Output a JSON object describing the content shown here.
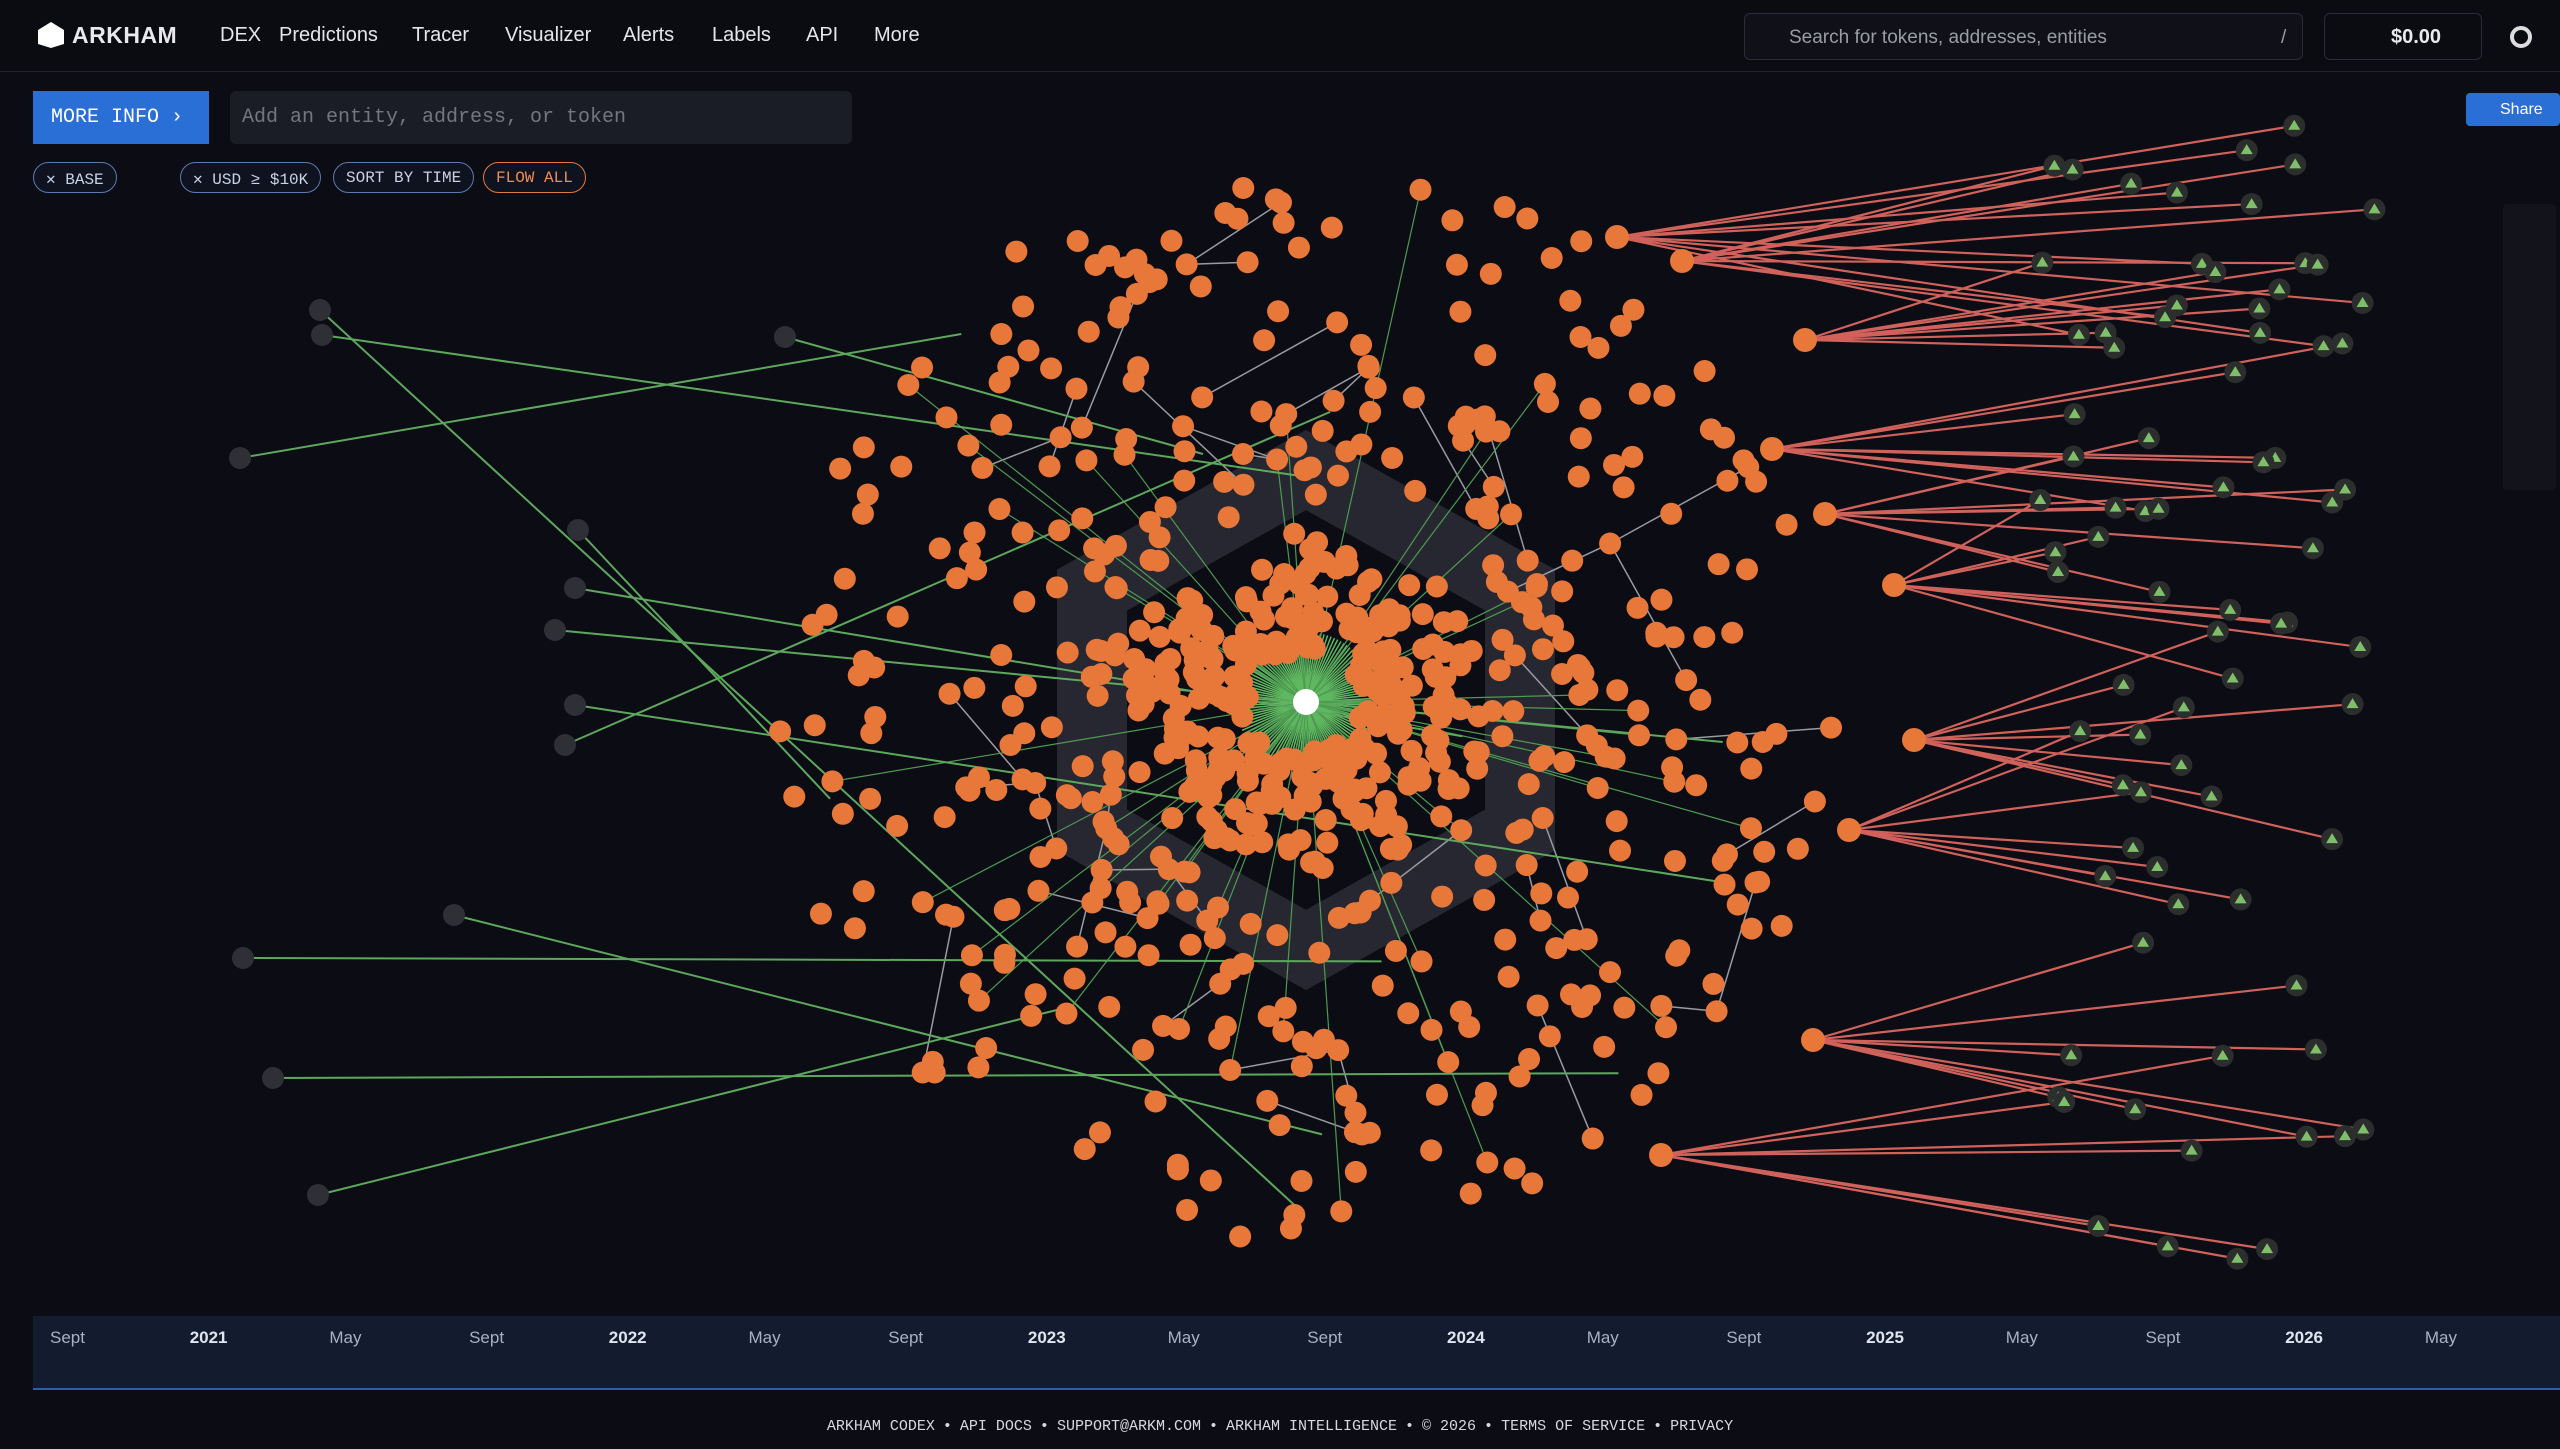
{
  "header": {
    "brand": "ARKHAM",
    "nav": [
      "DEX",
      "Predictions",
      "Tracer",
      "Visualizer",
      "Alerts",
      "Labels",
      "API",
      "More"
    ],
    "search_placeholder": "Search for tokens, addresses, entities",
    "search_shortcut": "/",
    "balance": "$0.00"
  },
  "toolbar": {
    "more_info": "MORE INFO",
    "input_placeholder": "Add an entity, address, or token",
    "share": "Share",
    "filters": [
      "BASE",
      "USD ≥ $10K",
      "SORT BY TIME",
      "FLOW ALL"
    ]
  },
  "timeline": {
    "labels": [
      "Sept",
      "2021",
      "May",
      "Sept",
      "2022",
      "May",
      "Sept",
      "2023",
      "May",
      "Sept",
      "2024",
      "May",
      "Sept",
      "2025",
      "May",
      "Sept",
      "2026",
      "May"
    ]
  },
  "footer": {
    "links": [
      "ARKHAM CODEX",
      "API DOCS",
      "SUPPORT@ARKM.COM",
      "ARKHAM INTELLIGENCE",
      "© 2026",
      "TERMS OF SERVICE",
      "PRIVACY"
    ],
    "separator": "•"
  }
}
